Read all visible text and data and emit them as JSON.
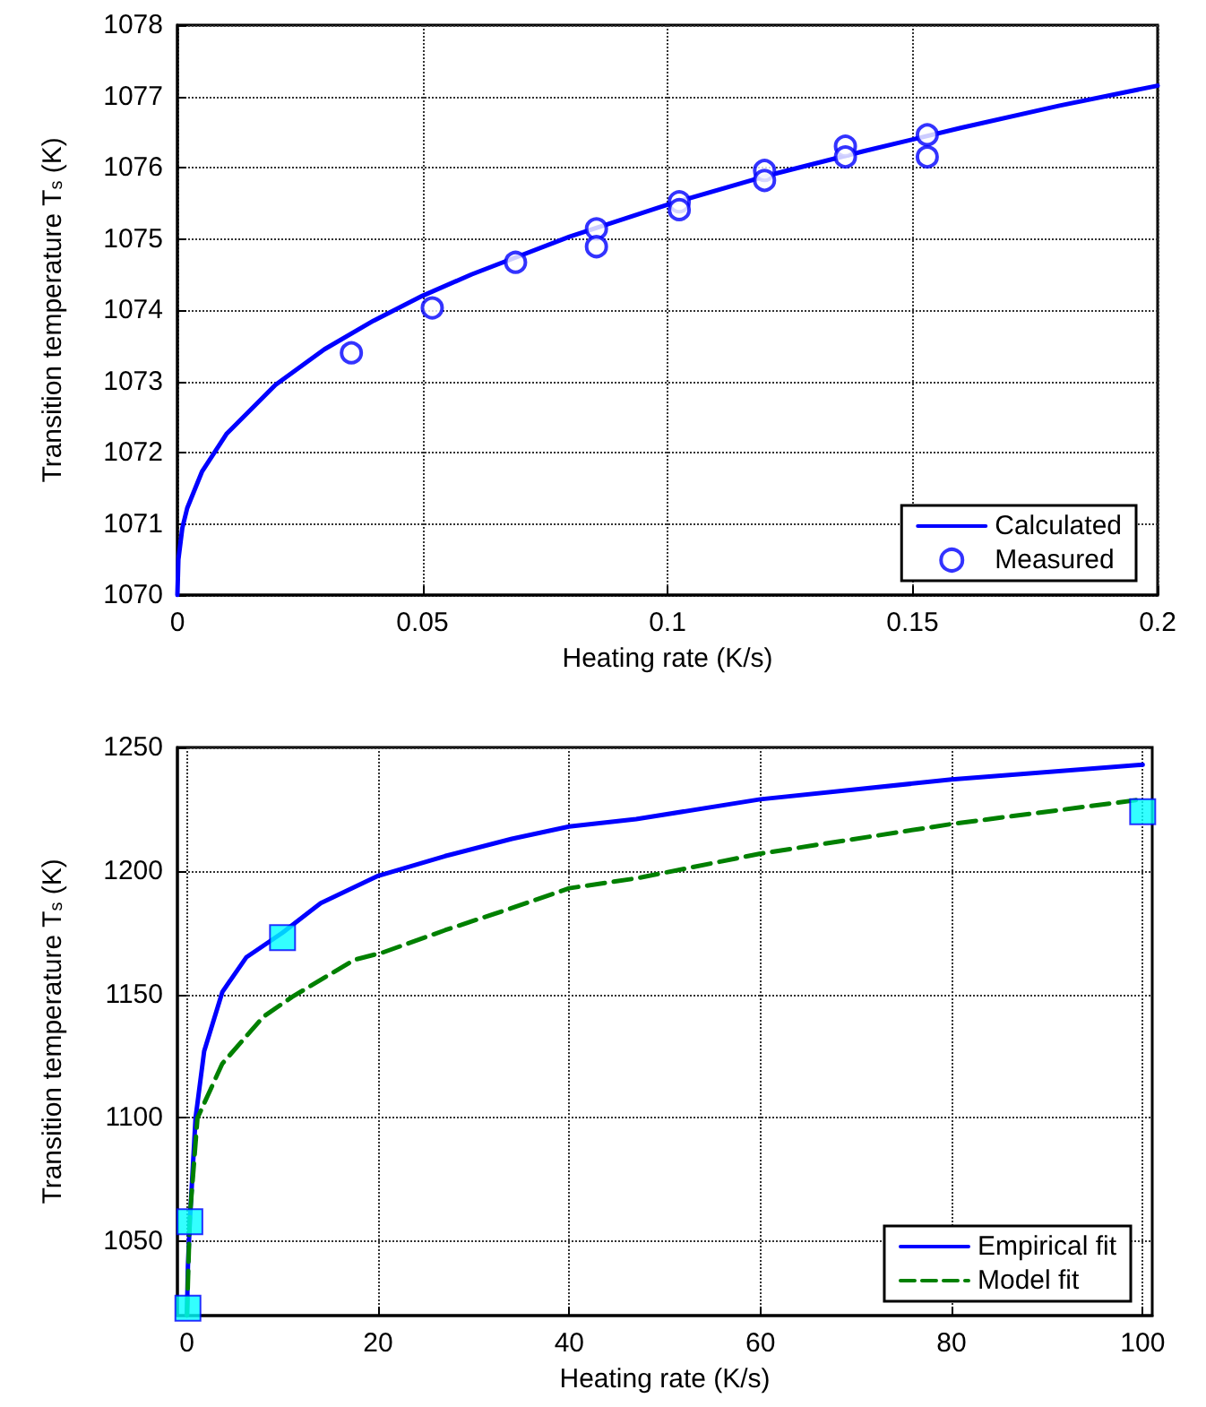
{
  "chart_data": [
    {
      "type": "line",
      "xlabel": "Heating rate (K/s)",
      "ylabel": "Transition temperature T$_{s}$ (K)",
      "xlim": [
        0,
        0.2
      ],
      "xticks": [
        0,
        0.05,
        0.1,
        0.15,
        0.2
      ],
      "ylim": [
        1070,
        1078
      ],
      "yticks": [
        1070,
        1071,
        1072,
        1073,
        1074,
        1075,
        1076,
        1077,
        1078
      ],
      "grid": true,
      "legend": "bottom right",
      "series": [
        {
          "name": "Calculated",
          "color": "#0000ff",
          "marker": "none",
          "line_style": "solid",
          "x": [
            0,
            0.0002,
            0.001,
            0.002,
            0.005,
            0.01,
            0.02,
            0.03,
            0.04,
            0.05,
            0.06,
            0.08,
            0.1,
            0.12,
            0.14,
            0.16,
            0.18,
            0.2
          ],
          "values": [
            1070,
            1070.5,
            1070.94,
            1071.22,
            1071.73,
            1072.26,
            1072.95,
            1073.45,
            1073.85,
            1074.2,
            1074.5,
            1075.03,
            1075.48,
            1075.88,
            1076.23,
            1076.56,
            1076.87,
            1077.15
          ]
        },
        {
          "name": "Measured",
          "type": "scatter",
          "color": "#0000ff",
          "marker": "circle",
          "x": [
            0.0355,
            0.052,
            0.069,
            0.0855,
            0.0855,
            0.1024,
            0.1024,
            0.1198,
            0.1198,
            0.1363,
            0.1363,
            0.153,
            0.153
          ],
          "values": [
            1073.4,
            1074.03,
            1074.67,
            1075.14,
            1074.89,
            1075.52,
            1075.41,
            1075.96,
            1075.82,
            1076.3,
            1076.15,
            1076.46,
            1076.15
          ]
        }
      ]
    },
    {
      "type": "line",
      "xlabel": "Heating rate (K/s)",
      "ylabel": "Transition temperature T$_{s}$ (K)",
      "xlim": [
        -1,
        101
      ],
      "xticks": [
        0,
        20,
        40,
        60,
        80,
        100
      ],
      "ylim": [
        1020,
        1250
      ],
      "yticks": [
        1050,
        1100,
        1150,
        1200,
        1250
      ],
      "grid": true,
      "legend": "bottom right",
      "series": [
        {
          "name": "Empirical fit",
          "color": "#0000ff",
          "marker": "none",
          "line_style": "solid",
          "x": [
            0,
            0.1,
            0.3,
            0.9,
            1.8,
            3.7,
            6.2,
            10,
            14,
            20,
            27,
            34,
            40,
            47,
            60,
            80,
            100
          ],
          "values": [
            1020,
            1040,
            1058,
            1100,
            1127,
            1151,
            1165,
            1175,
            1187,
            1198,
            1206,
            1213,
            1218,
            1221,
            1229,
            1237,
            1243
          ]
        },
        {
          "name": "Model fit",
          "color": "#008000",
          "marker": "none",
          "line_style": "dashed",
          "x": [
            0,
            0.3,
            1.1,
            3.7,
            8,
            11,
            17.5,
            20.5,
            27,
            34,
            40,
            47,
            60,
            80,
            100
          ],
          "values": [
            1020,
            1060,
            1100,
            1122,
            1141,
            1149,
            1164,
            1167,
            1176,
            1185,
            1193,
            1197,
            1207,
            1219,
            1229
          ]
        },
        {
          "type": "scatter",
          "color": "#00ffff",
          "marker": "square",
          "x": [
            0.1,
            0.3,
            10,
            100
          ],
          "values": [
            1023,
            1058,
            1173,
            1224
          ]
        }
      ]
    }
  ]
}
